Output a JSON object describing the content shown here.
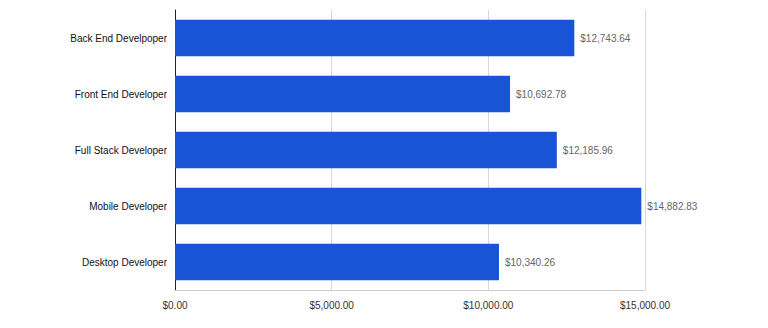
{
  "chart_data": {
    "type": "bar",
    "orientation": "horizontal",
    "categories": [
      "Back End Develpoper",
      "Front End Developer",
      "Full Stack Developer",
      "Mobile Developer",
      "Desktop Developer"
    ],
    "values": [
      12743.64,
      10692.78,
      12185.96,
      14882.83,
      10340.26
    ],
    "value_labels": [
      "$12,743.64",
      "$10,692.78",
      "$12,185.96",
      "$14,882.83",
      "$10,340.26"
    ],
    "color": "#1a54d6",
    "xlim": [
      0,
      15000
    ],
    "xticks": [
      {
        "value": 0,
        "label": "$0.00"
      },
      {
        "value": 5000,
        "label": "$5,000.00"
      },
      {
        "value": 10000,
        "label": "$10,000.00"
      },
      {
        "value": 15000,
        "label": "$15,000.00"
      }
    ],
    "grid": true,
    "data_labels": true
  }
}
